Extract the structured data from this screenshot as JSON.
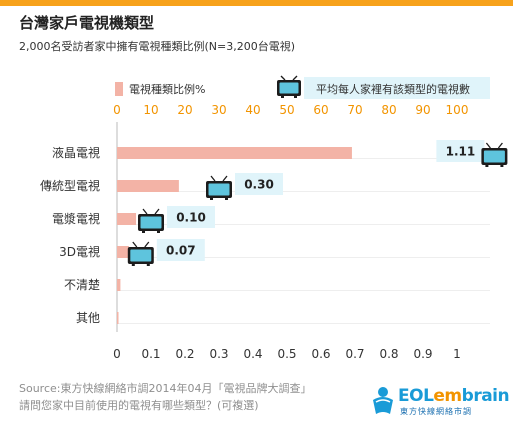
{
  "header": {
    "title": "台灣家戶電視機類型",
    "subtitle": "2,000名受訪者家中擁有電視種類比例(N=3,200台電視)"
  },
  "legend": {
    "bar_label": "電視種類比例%",
    "tv_label": "平均每人家裡有該類型的電視數"
  },
  "chart_data": {
    "type": "bar",
    "orientation": "horizontal",
    "categories": [
      "液晶電視",
      "傳統型電視",
      "電漿電視",
      "3D電視",
      "不清楚",
      "其他"
    ],
    "series": [
      {
        "name": "電視種類比例%",
        "values": [
          69.1,
          18.2,
          5.6,
          3.5,
          1.0,
          0.4
        ],
        "axis": "top",
        "color": "#f3b3a6"
      },
      {
        "name": "平均每人家裡有該類型的電視數",
        "values": [
          1.11,
          0.3,
          0.1,
          0.07,
          null,
          null
        ],
        "axis": "bottom",
        "marker": "tv-icon"
      }
    ],
    "data_labels": [
      "1.11",
      "0.30",
      "0.10",
      "0.07"
    ],
    "x_top": {
      "range": [
        0,
        100
      ],
      "ticks": [
        "0",
        "10",
        "20",
        "30",
        "40",
        "50",
        "60",
        "70",
        "80",
        "90",
        "100"
      ],
      "color": "#f29400"
    },
    "x_bottom": {
      "range": [
        0,
        1
      ],
      "ticks": [
        "0",
        "0.1",
        "0.2",
        "0.3",
        "0.4",
        "0.5",
        "0.6",
        "0.7",
        "0.8",
        "0.9",
        "1"
      ]
    },
    "grid": true,
    "legend_position": "top"
  },
  "footer": {
    "source_line1": "Source:東方快線網絡市調2014年04月「電視品牌大調查」",
    "source_line2": "請問您家中目前使用的電視有哪些類型？(可複選)"
  },
  "logo": {
    "text_a": "EOL",
    "text_b": "em",
    "text_c": "brain",
    "sub": "東方快線網絡市調"
  },
  "colors": {
    "accent": "#f7a21b",
    "bar": "#f3b3a6",
    "label_box": "#e0f4fa",
    "tv_frame": "#1c1c1c",
    "tv_screen": "#5ec4dd"
  }
}
